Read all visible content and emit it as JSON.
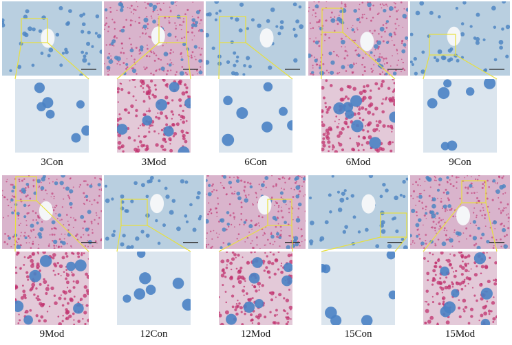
{
  "panels": [
    {
      "label": "3Con",
      "tint": "#b9cfe0"
    },
    {
      "label": "3Mod",
      "tint": "#d9b4cc"
    },
    {
      "label": "6Con",
      "tint": "#b9cfe0"
    },
    {
      "label": "6Mod",
      "tint": "#d9b4cc"
    },
    {
      "label": "9Con",
      "tint": "#b9cfe0"
    },
    {
      "label": "9Mod",
      "tint": "#d9b4cc"
    },
    {
      "label": "12Con",
      "tint": "#b9cfe0"
    },
    {
      "label": "12Mod",
      "tint": "#d9b4cc"
    },
    {
      "label": "15Con",
      "tint": "#b9cfe0"
    },
    {
      "label": "15Mod",
      "tint": "#d9b4cc"
    }
  ]
}
